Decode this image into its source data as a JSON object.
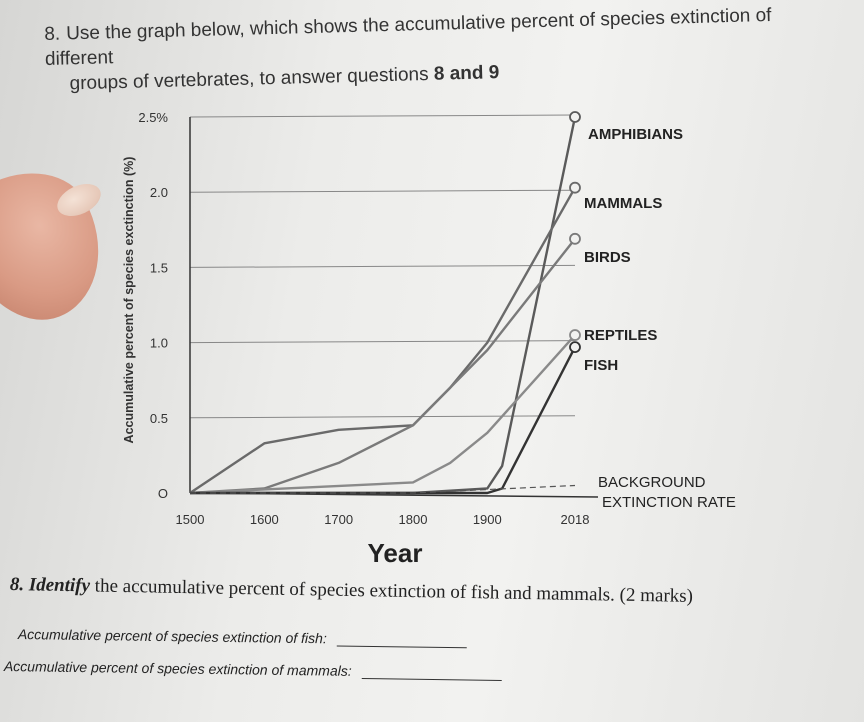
{
  "question": {
    "number": "8.",
    "text_line1": "Use the graph below, which shows the accumulative percent of species extinction of different",
    "text_line2_prefix": "groups of vertebrates, to answer questions",
    "text_line2_bold": "8 and 9"
  },
  "chart_data": {
    "type": "line",
    "title": "",
    "xlabel": "Year",
    "ylabel": "Accumulative percent of species exctinction (%)",
    "x_ticks": [
      "1500",
      "1600",
      "1700",
      "1800",
      "1900",
      "2018"
    ],
    "y_ticks": [
      "O",
      "0.5",
      "1.0",
      "1.5",
      "2.0",
      "2.5%"
    ],
    "xlim": [
      1500,
      2018
    ],
    "ylim": [
      0,
      2.5
    ],
    "grid": "horizontal",
    "legend_placement": "right (labels at line ends)",
    "series": [
      {
        "name": "AMPHIBIANS",
        "color": "#5a5a5a",
        "x": [
          1500,
          1800,
          1900,
          1920,
          2018
        ],
        "y": [
          0,
          0,
          0.03,
          0.18,
          2.5
        ]
      },
      {
        "name": "MAMMALS",
        "color": "#6a6a6a",
        "x": [
          1500,
          1600,
          1700,
          1800,
          1850,
          1900,
          2018
        ],
        "y": [
          0,
          0.33,
          0.42,
          0.45,
          0.7,
          1.0,
          2.03
        ]
      },
      {
        "name": "BIRDS",
        "color": "#7a7a7a",
        "x": [
          1500,
          1600,
          1700,
          1800,
          1900,
          2018
        ],
        "y": [
          0,
          0.03,
          0.2,
          0.45,
          0.95,
          1.69
        ]
      },
      {
        "name": "REPTILES",
        "color": "#8a8a8a",
        "x": [
          1500,
          1800,
          1850,
          1900,
          2018
        ],
        "y": [
          0,
          0.07,
          0.2,
          0.4,
          1.05
        ]
      },
      {
        "name": "FISH",
        "color": "#333333",
        "x": [
          1500,
          1900,
          1920,
          2018
        ],
        "y": [
          0,
          0,
          0.03,
          0.97
        ]
      },
      {
        "name": "BACKGROUND EXTINCTION RATE",
        "color": "#555555",
        "dashed": true,
        "x": [
          1500,
          1800,
          2018
        ],
        "y": [
          0,
          0,
          0.05
        ]
      }
    ],
    "annotations": [
      "AMPHIBIANS",
      "MAMMALS",
      "BIRDS",
      "REPTILES",
      "FISH",
      "BACKGROUND",
      "EXTINCTION RATE"
    ]
  },
  "sub_question": {
    "number": "8.",
    "verb": "Identify",
    "text": "the accumulative percent of species extinction of fish and mammals. (2 marks)"
  },
  "answers": {
    "fish_label": "Accumulative percent of species extinction of fish:",
    "mammals_label": "Accumulative percent of species extinction of mammals:"
  }
}
